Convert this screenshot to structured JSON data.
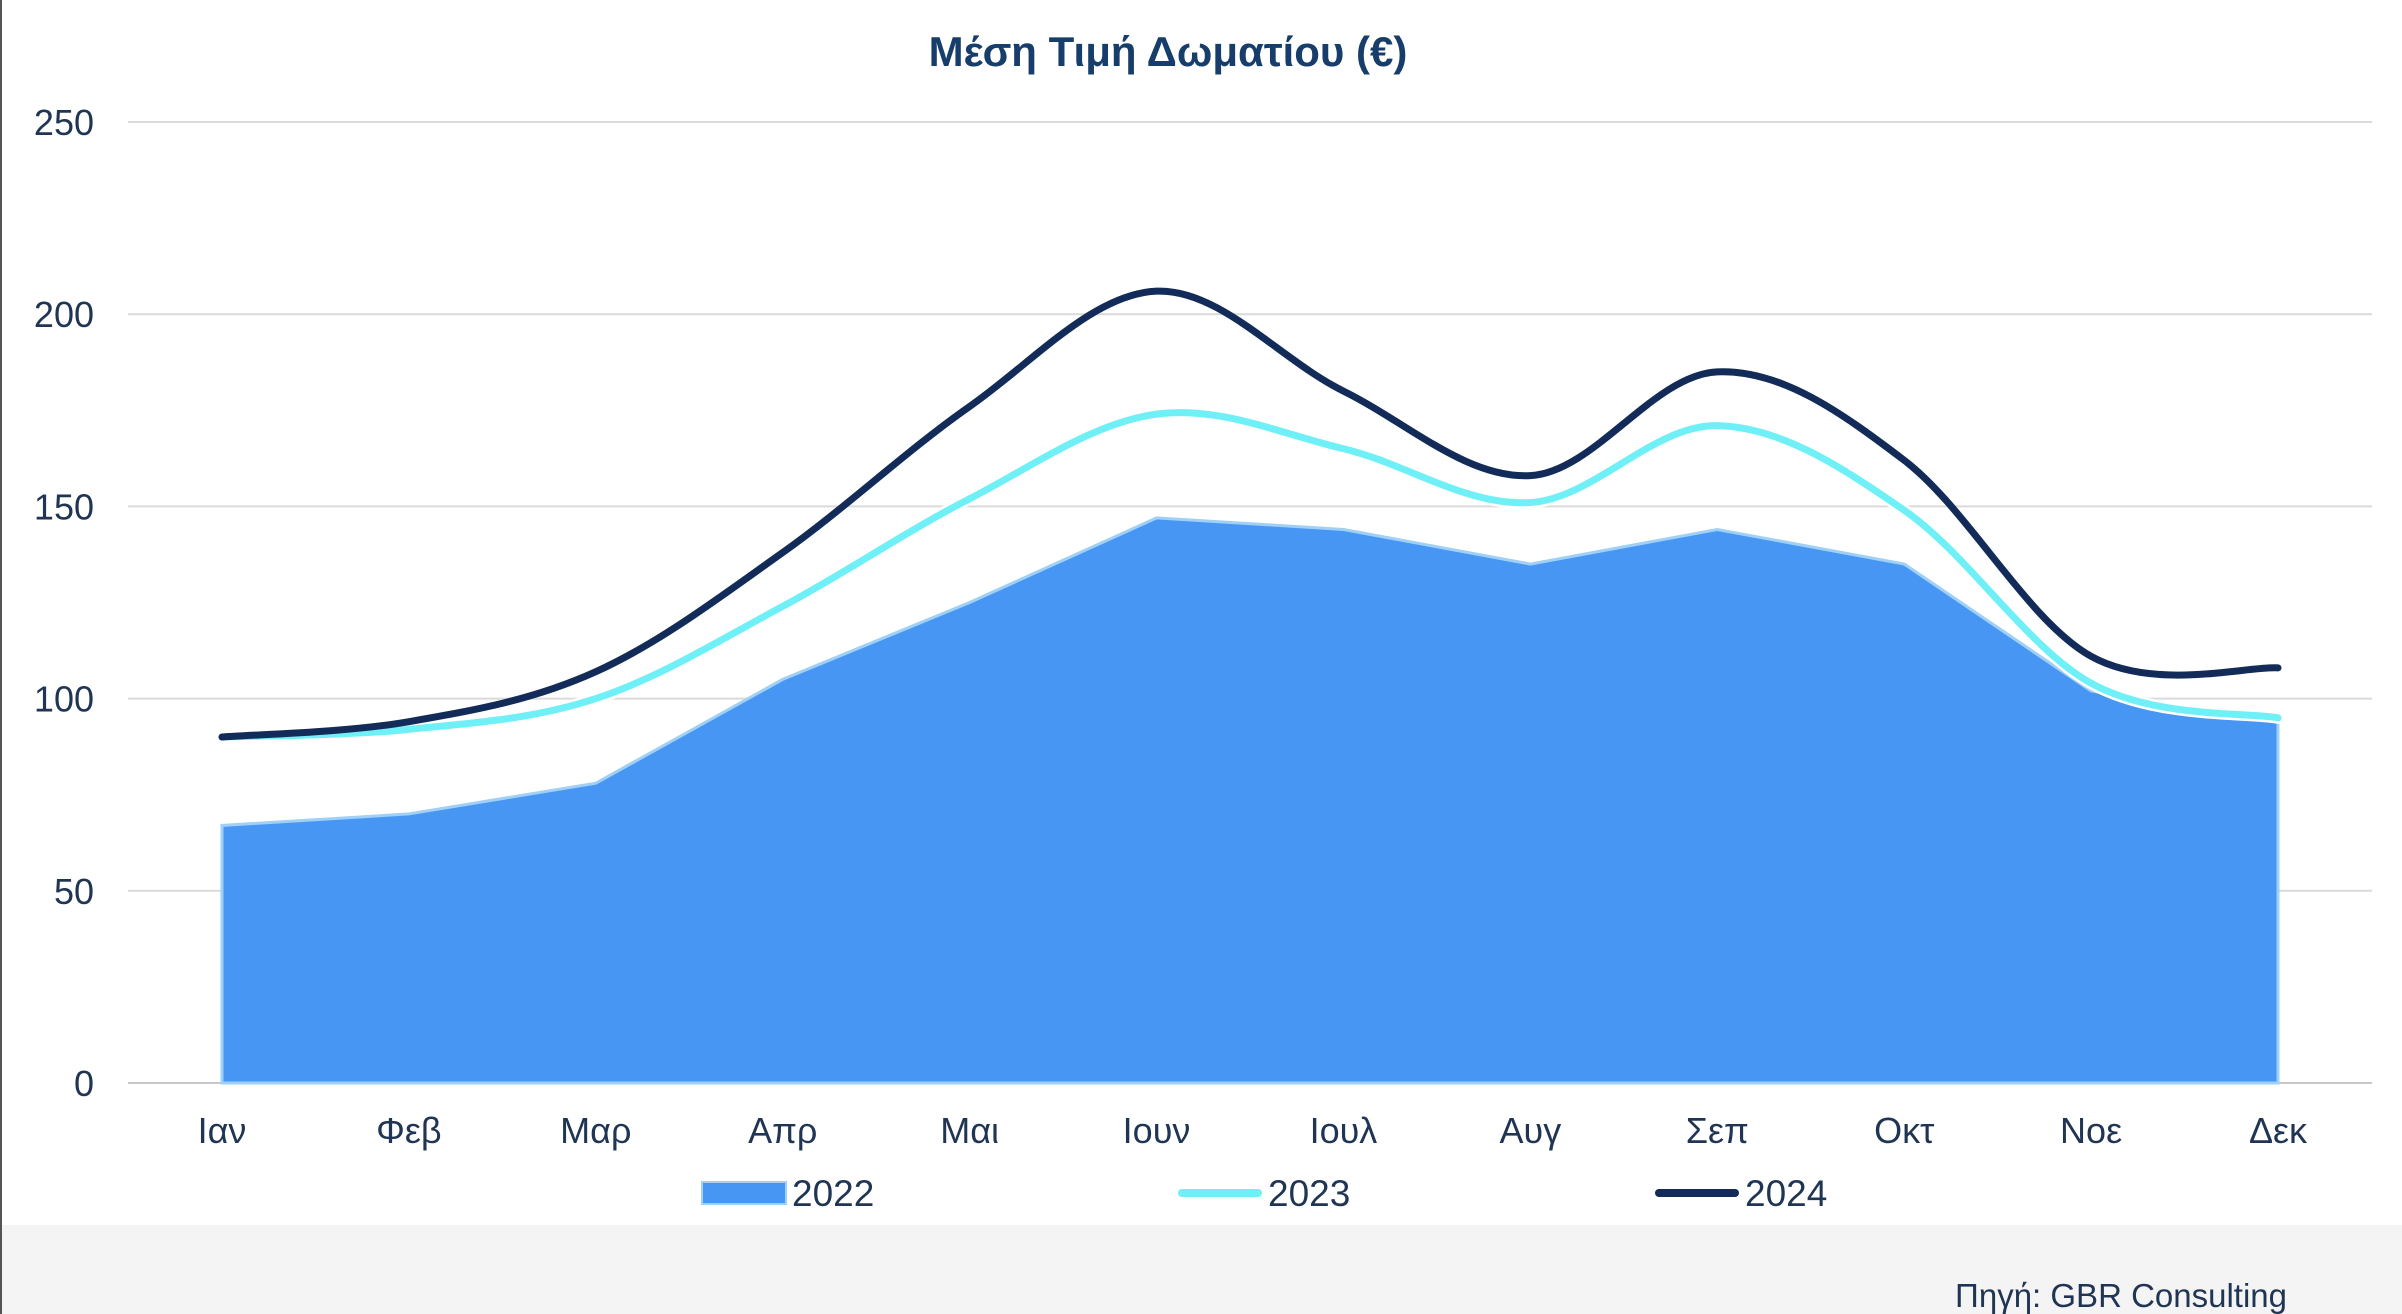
{
  "chart_data": {
    "type": "area",
    "title": "Μέση Τιμή Δωματίου (€)",
    "categories": [
      "Ιαν",
      "Φεβ",
      "Μαρ",
      "Απρ",
      "Μαι",
      "Ιουν",
      "Ιουλ",
      "Αυγ",
      "Σεπ",
      "Οκτ",
      "Νοε",
      "Δεκ"
    ],
    "ylim": [
      0,
      250
    ],
    "yticks": [
      0,
      50,
      100,
      150,
      200,
      250
    ],
    "grid": true,
    "legend_position": "bottom",
    "series": [
      {
        "name": "2022",
        "kind": "area",
        "color": "#4796f3",
        "values": [
          67,
          70,
          78,
          105,
          125,
          147,
          144,
          135,
          144,
          135,
          102,
          94
        ]
      },
      {
        "name": "2023",
        "kind": "line",
        "color": "#6ff0f6",
        "values": [
          90,
          92,
          100,
          124,
          152,
          174,
          165,
          151,
          171,
          149,
          104,
          95
        ]
      },
      {
        "name": "2024",
        "kind": "line",
        "color": "#122b58",
        "values": [
          90,
          94,
          107,
          138,
          176,
          206,
          180,
          158,
          185,
          162,
          111,
          108
        ]
      }
    ]
  },
  "source": "Πηγή: GBR Consulting"
}
